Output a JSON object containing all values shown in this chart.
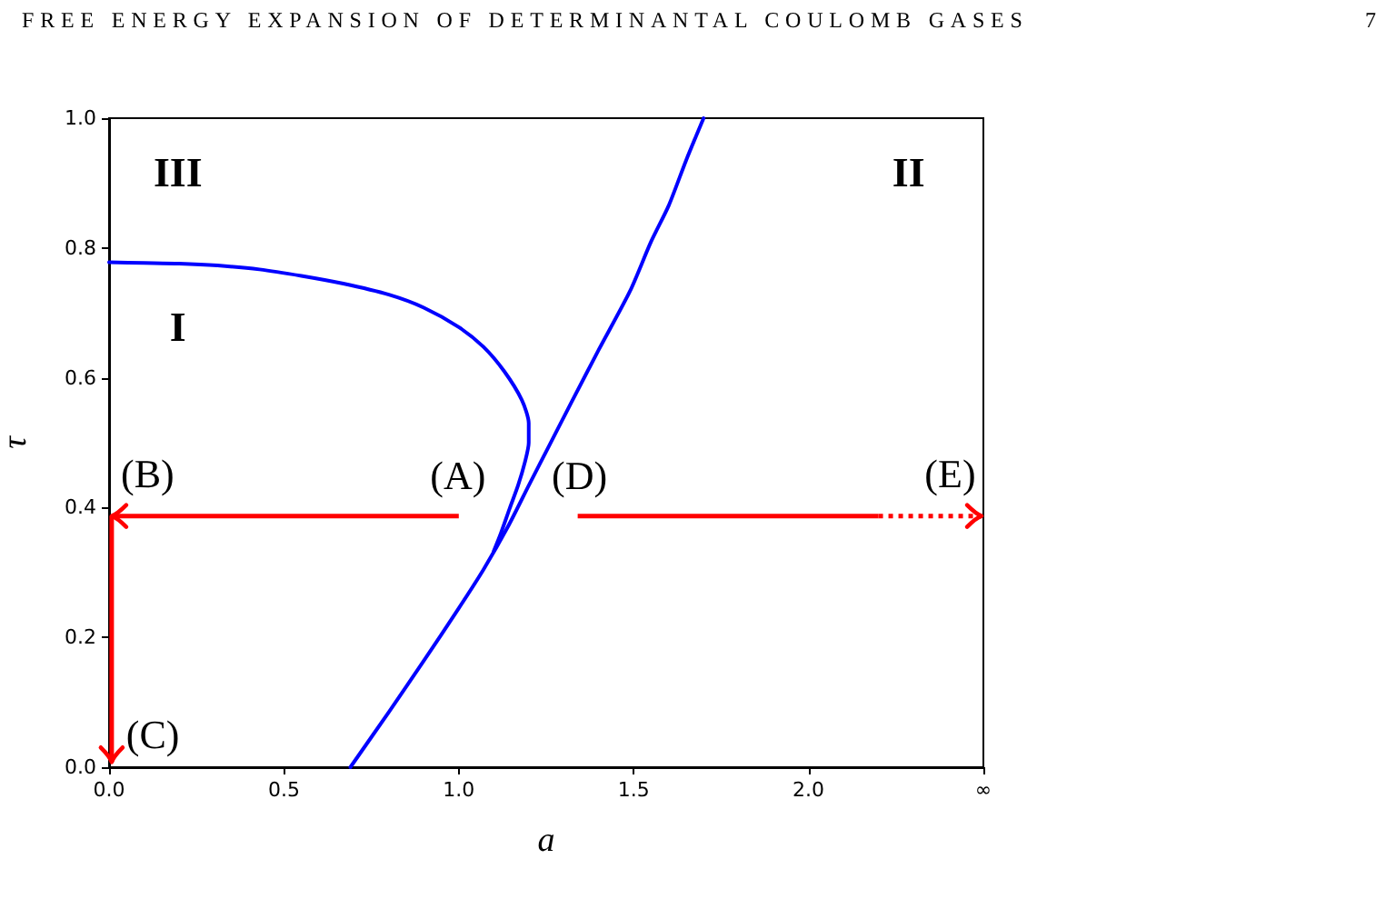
{
  "chart_data": {
    "type": "line",
    "xlabel": "a",
    "ylabel": "τ",
    "xlim": [
      0,
      2.5
    ],
    "ylim": [
      0,
      1
    ],
    "xticks": [
      {
        "value": 0,
        "label": "0.0"
      },
      0.5,
      {
        "value": 1,
        "label": "1.0"
      },
      1.5,
      {
        "value": 2,
        "label": "2.0"
      },
      {
        "value": 2.5,
        "label": "∞"
      }
    ],
    "yticks": [
      {
        "value": 0,
        "label": "0.0"
      },
      0.2,
      0.4,
      0.6,
      0.8,
      {
        "value": 1,
        "label": "1.0"
      }
    ],
    "marker": "none",
    "series": [
      {
        "color": "#0000ff",
        "x": [
          0,
          0.1,
          0.2,
          0.31,
          0.43,
          0.55,
          0.67,
          0.8,
          0.9,
          1.0,
          1.07,
          1.13,
          1.18,
          1.2,
          1.2,
          1.19,
          1.17,
          1.145,
          1.12,
          1.1
        ],
        "values": [
          0.778,
          0.777,
          0.776,
          0.773,
          0.767,
          0.757,
          0.745,
          0.728,
          0.708,
          0.678,
          0.648,
          0.61,
          0.566,
          0.53,
          0.5,
          0.472,
          0.435,
          0.398,
          0.36,
          0.333
        ]
      },
      {
        "color": "#0000ff",
        "x": [
          0.69,
          0.8,
          0.9,
          1.0,
          1.07,
          1.14,
          1.2,
          1.26,
          1.32,
          1.4,
          1.49,
          1.55,
          1.6,
          1.65,
          1.7
        ],
        "values": [
          0,
          0.085,
          0.164,
          0.245,
          0.304,
          0.37,
          0.434,
          0.497,
          0.56,
          0.643,
          0.734,
          0.81,
          0.865,
          0.935,
          1.0
        ]
      }
    ],
    "annotations": [
      "FREE ENERGY EXPANSION OF DETERMINANTAL COULOMB GASES",
      "7",
      "III",
      "I",
      "II",
      "(A)",
      "(B)",
      "(C)",
      "(D)",
      "(E)"
    ]
  }
}
